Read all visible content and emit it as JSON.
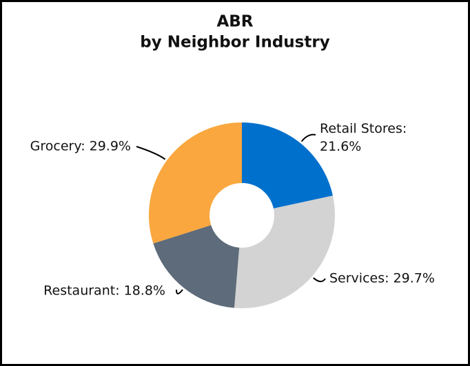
{
  "chart_data": {
    "type": "pie",
    "title": [
      "ABR",
      "by Neighbor Industry"
    ],
    "values": [
      21.6,
      29.7,
      18.8,
      29.9
    ],
    "value_labels": [
      "Retail Stores: 21.6%",
      "Services: 29.7%",
      "Restaurant: 18.8%",
      "Grocery: 29.9%"
    ],
    "colors": [
      "#0070cd",
      "#d3d3d3",
      "#5d6b7a",
      "#f9a73e"
    ]
  }
}
